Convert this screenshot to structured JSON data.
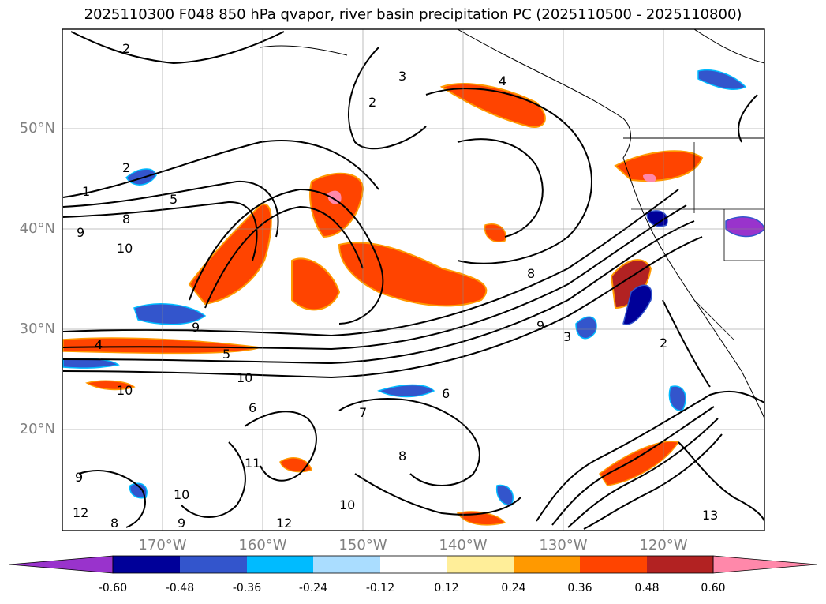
{
  "title": "2025110300 F048 850 hPa qvapor, river basin precipitation PC (2025110500 - 2025110800)",
  "map": {
    "lon_range": [
      -180,
      -110
    ],
    "lat_range": [
      10,
      60
    ],
    "latitude_labels": [
      "50°N",
      "40°N",
      "30°N",
      "20°N"
    ],
    "longitude_labels": [
      "170°W",
      "160°W",
      "150°W",
      "140°W",
      "130°W",
      "120°W"
    ],
    "gridlines": true,
    "contour_labels": [
      "2",
      "3",
      "4",
      "2",
      "2",
      "1",
      "8",
      "9",
      "10",
      "9",
      "5",
      "8",
      "10",
      "9",
      "6",
      "7",
      "6",
      "8",
      "10",
      "9",
      "10",
      "11",
      "10",
      "12",
      "12",
      "13",
      "9",
      "8",
      "2",
      "3",
      "4",
      "5"
    ]
  },
  "colorbar": {
    "ticks": [
      "-0.60",
      "-0.48",
      "-0.36",
      "-0.24",
      "-0.12",
      "0.12",
      "0.24",
      "0.36",
      "0.48",
      "0.60"
    ],
    "colors": [
      "#9933cc",
      "#000099",
      "#3355cc",
      "#00bbff",
      "#aaddff",
      "#ffffff",
      "#ffee99",
      "#ff9900",
      "#ff4400",
      "#b22222",
      "#ff88aa"
    ],
    "extend": "both"
  }
}
